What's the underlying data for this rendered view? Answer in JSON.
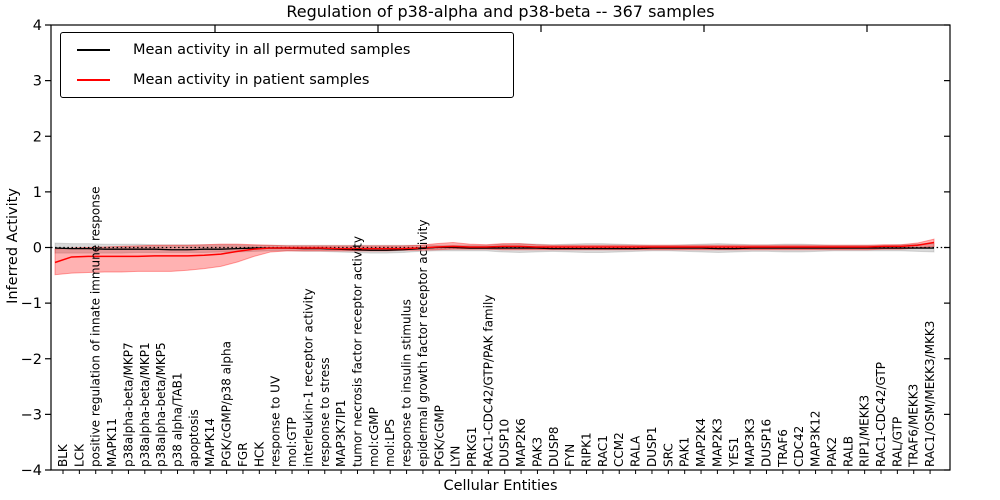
{
  "figure": {
    "title": "Regulation of p38-alpha and p38-beta -- 367 samples",
    "xlabel": "Cellular Entities",
    "ylabel": "Inferred Activity"
  },
  "legend": {
    "entries": [
      {
        "label": "Mean activity in all permuted samples",
        "color": "#000000"
      },
      {
        "label": "Mean activity in patient samples",
        "color": "#ff0000"
      }
    ]
  },
  "chart_data": {
    "type": "line",
    "title": "Regulation of p38-alpha and p38-beta -- 367 samples",
    "xlabel": "Cellular Entities",
    "ylabel": "Inferred Activity",
    "ylim": [
      -4,
      4
    ],
    "yticks": [
      4,
      3,
      2,
      1,
      0,
      -1,
      -2,
      -3,
      -4
    ],
    "grid": false,
    "legend_position": "upper left",
    "reference_line": {
      "y": 0,
      "style": "dotted",
      "color": "#000000"
    },
    "categories": [
      "BLK",
      "LCK",
      "positive regulation of innate immune response",
      "MAPK11",
      "p38alpha-beta/MKP7",
      "p38alpha-beta/MKP1",
      "p38alpha-beta/MKP5",
      "p38 alpha/TAB1",
      "apoptosis",
      "MAPK14",
      "PGK/cGMP/p38 alpha",
      "FGR",
      "HCK",
      "response to UV",
      "mol:GTP",
      "interleukin-1 receptor activity",
      "response to stress",
      "MAP3K7IP1",
      "tumor necrosis factor receptor activity",
      "mol:cGMP",
      "mol:LPS",
      "response to insulin stimulus",
      "epidermal growth factor receptor activity",
      "PGK/cGMP",
      "LYN",
      "PRKG1",
      "RAC1-CDC42/GTP/PAK family",
      "DUSP10",
      "MAP2K6",
      "PAK3",
      "DUSP8",
      "FYN",
      "RIPK1",
      "RAC1",
      "CCM2",
      "RALA",
      "DUSP1",
      "SRC",
      "PAK1",
      "MAP2K4",
      "MAP2K3",
      "YES1",
      "MAP3K3",
      "DUSP16",
      "TRAF6",
      "CDC42",
      "MAP3K12",
      "PAK2",
      "RALB",
      "RIP1/MEKK3",
      "RAC1-CDC42/GTP",
      "RAL/GTP",
      "TRAF6/MEKK3",
      "RAC1/OSM/MEKK3/MKK3"
    ],
    "series": [
      {
        "name": "Mean activity in all permuted samples",
        "line_color": "#000000",
        "band_color": "rgba(0,0,0,0.15)",
        "values": [
          -0.01,
          -0.02,
          -0.02,
          -0.03,
          -0.03,
          -0.03,
          -0.03,
          -0.04,
          -0.04,
          -0.03,
          -0.03,
          -0.02,
          -0.01,
          -0.01,
          -0.01,
          -0.02,
          -0.02,
          -0.03,
          -0.04,
          -0.05,
          -0.05,
          -0.04,
          -0.02,
          0.0,
          0.0,
          -0.01,
          -0.01,
          -0.01,
          -0.01,
          -0.01,
          -0.02,
          -0.02,
          -0.02,
          -0.02,
          -0.02,
          -0.02,
          -0.01,
          -0.01,
          -0.01,
          -0.01,
          -0.02,
          -0.02,
          -0.01,
          -0.01,
          -0.01,
          -0.01,
          -0.01,
          -0.01,
          -0.01,
          -0.01,
          -0.01,
          -0.01,
          -0.01,
          -0.01
        ],
        "band_upper": [
          0.08,
          0.07,
          0.07,
          0.06,
          0.06,
          0.06,
          0.05,
          0.05,
          0.05,
          0.05,
          0.05,
          0.05,
          0.04,
          0.04,
          0.04,
          0.04,
          0.04,
          0.04,
          0.04,
          0.04,
          0.04,
          0.04,
          0.04,
          0.04,
          0.04,
          0.04,
          0.04,
          0.06,
          0.07,
          0.06,
          0.05,
          0.06,
          0.07,
          0.07,
          0.06,
          0.05,
          0.04,
          0.04,
          0.05,
          0.06,
          0.07,
          0.06,
          0.05,
          0.05,
          0.06,
          0.06,
          0.05,
          0.04,
          0.04,
          0.04,
          0.04,
          0.05,
          0.06,
          0.07
        ],
        "band_lower": [
          -0.1,
          -0.1,
          -0.1,
          -0.1,
          -0.1,
          -0.09,
          -0.09,
          -0.09,
          -0.09,
          -0.09,
          -0.08,
          -0.08,
          -0.07,
          -0.06,
          -0.06,
          -0.07,
          -0.07,
          -0.08,
          -0.09,
          -0.1,
          -0.1,
          -0.09,
          -0.07,
          -0.06,
          -0.06,
          -0.06,
          -0.06,
          -0.08,
          -0.09,
          -0.08,
          -0.07,
          -0.08,
          -0.09,
          -0.09,
          -0.08,
          -0.07,
          -0.06,
          -0.06,
          -0.07,
          -0.08,
          -0.09,
          -0.08,
          -0.07,
          -0.07,
          -0.08,
          -0.08,
          -0.07,
          -0.06,
          -0.06,
          -0.06,
          -0.06,
          -0.06,
          -0.07,
          -0.08
        ]
      },
      {
        "name": "Mean activity in patient samples",
        "line_color": "#ff0000",
        "band_color": "rgba(255,0,0,0.30)",
        "values": [
          -0.27,
          -0.17,
          -0.16,
          -0.16,
          -0.16,
          -0.16,
          -0.15,
          -0.15,
          -0.15,
          -0.14,
          -0.12,
          -0.07,
          -0.03,
          -0.01,
          -0.01,
          -0.01,
          -0.01,
          -0.02,
          -0.02,
          -0.02,
          -0.02,
          -0.02,
          -0.01,
          0.01,
          0.02,
          0.01,
          0.01,
          0.02,
          0.02,
          0.01,
          0.01,
          0.01,
          0.01,
          0.01,
          0.01,
          0.01,
          0.01,
          0.01,
          0.01,
          0.01,
          0.01,
          0.01,
          0.01,
          0.01,
          0.01,
          0.01,
          0.01,
          0.01,
          0.01,
          0.01,
          0.02,
          0.02,
          0.04,
          0.09
        ],
        "band_upper": [
          -0.03,
          -0.01,
          0.0,
          0.01,
          0.02,
          0.03,
          0.04,
          0.04,
          0.04,
          0.05,
          0.06,
          0.06,
          0.05,
          0.04,
          0.03,
          0.03,
          0.03,
          0.03,
          0.03,
          0.03,
          0.03,
          0.03,
          0.04,
          0.07,
          0.09,
          0.06,
          0.05,
          0.07,
          0.07,
          0.05,
          0.04,
          0.04,
          0.04,
          0.04,
          0.04,
          0.04,
          0.04,
          0.04,
          0.04,
          0.04,
          0.04,
          0.04,
          0.04,
          0.04,
          0.04,
          0.04,
          0.04,
          0.04,
          0.04,
          0.04,
          0.05,
          0.05,
          0.08,
          0.15
        ],
        "band_lower": [
          -0.49,
          -0.46,
          -0.45,
          -0.44,
          -0.44,
          -0.43,
          -0.43,
          -0.43,
          -0.41,
          -0.38,
          -0.34,
          -0.26,
          -0.16,
          -0.08,
          -0.06,
          -0.06,
          -0.06,
          -0.06,
          -0.06,
          -0.06,
          -0.06,
          -0.05,
          -0.05,
          -0.04,
          -0.03,
          -0.03,
          -0.03,
          -0.04,
          -0.04,
          -0.04,
          -0.04,
          -0.04,
          -0.04,
          -0.04,
          -0.04,
          -0.04,
          -0.04,
          -0.04,
          -0.04,
          -0.04,
          -0.04,
          -0.04,
          -0.04,
          -0.04,
          -0.04,
          -0.04,
          -0.04,
          -0.04,
          -0.04,
          -0.04,
          -0.03,
          -0.03,
          -0.01,
          0.02
        ]
      }
    ]
  }
}
